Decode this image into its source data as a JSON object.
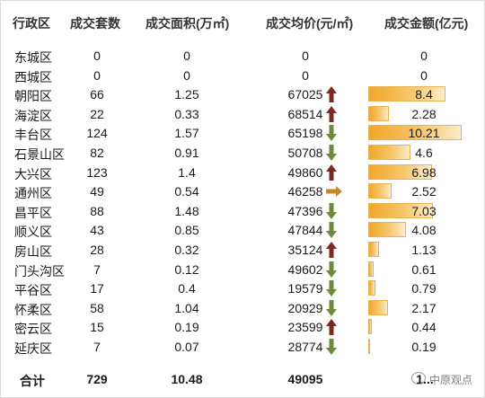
{
  "table": {
    "headers": {
      "district": "行政区",
      "units": "成交套数",
      "area": "成交面积(万㎡)",
      "price": "成交均价(元/㎡)",
      "amount": "成交金额(亿元)"
    },
    "rows": [
      {
        "district": "东城区",
        "units": "0",
        "area": "0",
        "price": "0",
        "trend": "none",
        "amount": "0",
        "amount_value": 0
      },
      {
        "district": "西城区",
        "units": "0",
        "area": "0",
        "price": "0",
        "trend": "none",
        "amount": "0",
        "amount_value": 0
      },
      {
        "district": "朝阳区",
        "units": "66",
        "area": "1.25",
        "price": "67025",
        "trend": "up",
        "amount": "8.4",
        "amount_value": 8.4
      },
      {
        "district": "海淀区",
        "units": "22",
        "area": "0.33",
        "price": "68514",
        "trend": "up",
        "amount": "2.28",
        "amount_value": 2.28
      },
      {
        "district": "丰台区",
        "units": "124",
        "area": "1.57",
        "price": "65198",
        "trend": "down",
        "amount": "10.21",
        "amount_value": 10.21
      },
      {
        "district": "石景山区",
        "units": "82",
        "area": "0.91",
        "price": "50708",
        "trend": "down",
        "amount": "4.6",
        "amount_value": 4.6
      },
      {
        "district": "大兴区",
        "units": "123",
        "area": "1.4",
        "price": "49860",
        "trend": "up",
        "amount": "6.98",
        "amount_value": 6.98
      },
      {
        "district": "通州区",
        "units": "49",
        "area": "0.54",
        "price": "46258",
        "trend": "flat",
        "amount": "2.52",
        "amount_value": 2.52
      },
      {
        "district": "昌平区",
        "units": "88",
        "area": "1.48",
        "price": "47396",
        "trend": "down",
        "amount": "7.03",
        "amount_value": 7.03
      },
      {
        "district": "顺义区",
        "units": "43",
        "area": "0.85",
        "price": "47844",
        "trend": "down",
        "amount": "4.08",
        "amount_value": 4.08
      },
      {
        "district": "房山区",
        "units": "28",
        "area": "0.32",
        "price": "35124",
        "trend": "up",
        "amount": "1.13",
        "amount_value": 1.13
      },
      {
        "district": "门头沟区",
        "units": "7",
        "area": "0.12",
        "price": "49602",
        "trend": "down",
        "amount": "0.61",
        "amount_value": 0.61
      },
      {
        "district": "平谷区",
        "units": "17",
        "area": "0.4",
        "price": "19579",
        "trend": "down",
        "amount": "0.79",
        "amount_value": 0.79
      },
      {
        "district": "怀柔区",
        "units": "58",
        "area": "1.04",
        "price": "20929",
        "trend": "down",
        "amount": "2.17",
        "amount_value": 2.17
      },
      {
        "district": "密云区",
        "units": "15",
        "area": "0.19",
        "price": "23599",
        "trend": "up",
        "amount": "0.44",
        "amount_value": 0.44
      },
      {
        "district": "延庆区",
        "units": "7",
        "area": "0.07",
        "price": "28774",
        "trend": "down",
        "amount": "0.19",
        "amount_value": 0.19
      }
    ],
    "total": {
      "label": "合计",
      "units": "729",
      "area": "10.48",
      "price": "49095",
      "amount": "1..."
    }
  },
  "watermark": {
    "text": "中原观点",
    "icon": "wechat-logo-icon"
  },
  "colors": {
    "arrow_up": "#7a2a24",
    "arrow_down": "#6e8a3a",
    "arrow_flat": "#c9852e",
    "bar": "#f0a72a"
  }
}
